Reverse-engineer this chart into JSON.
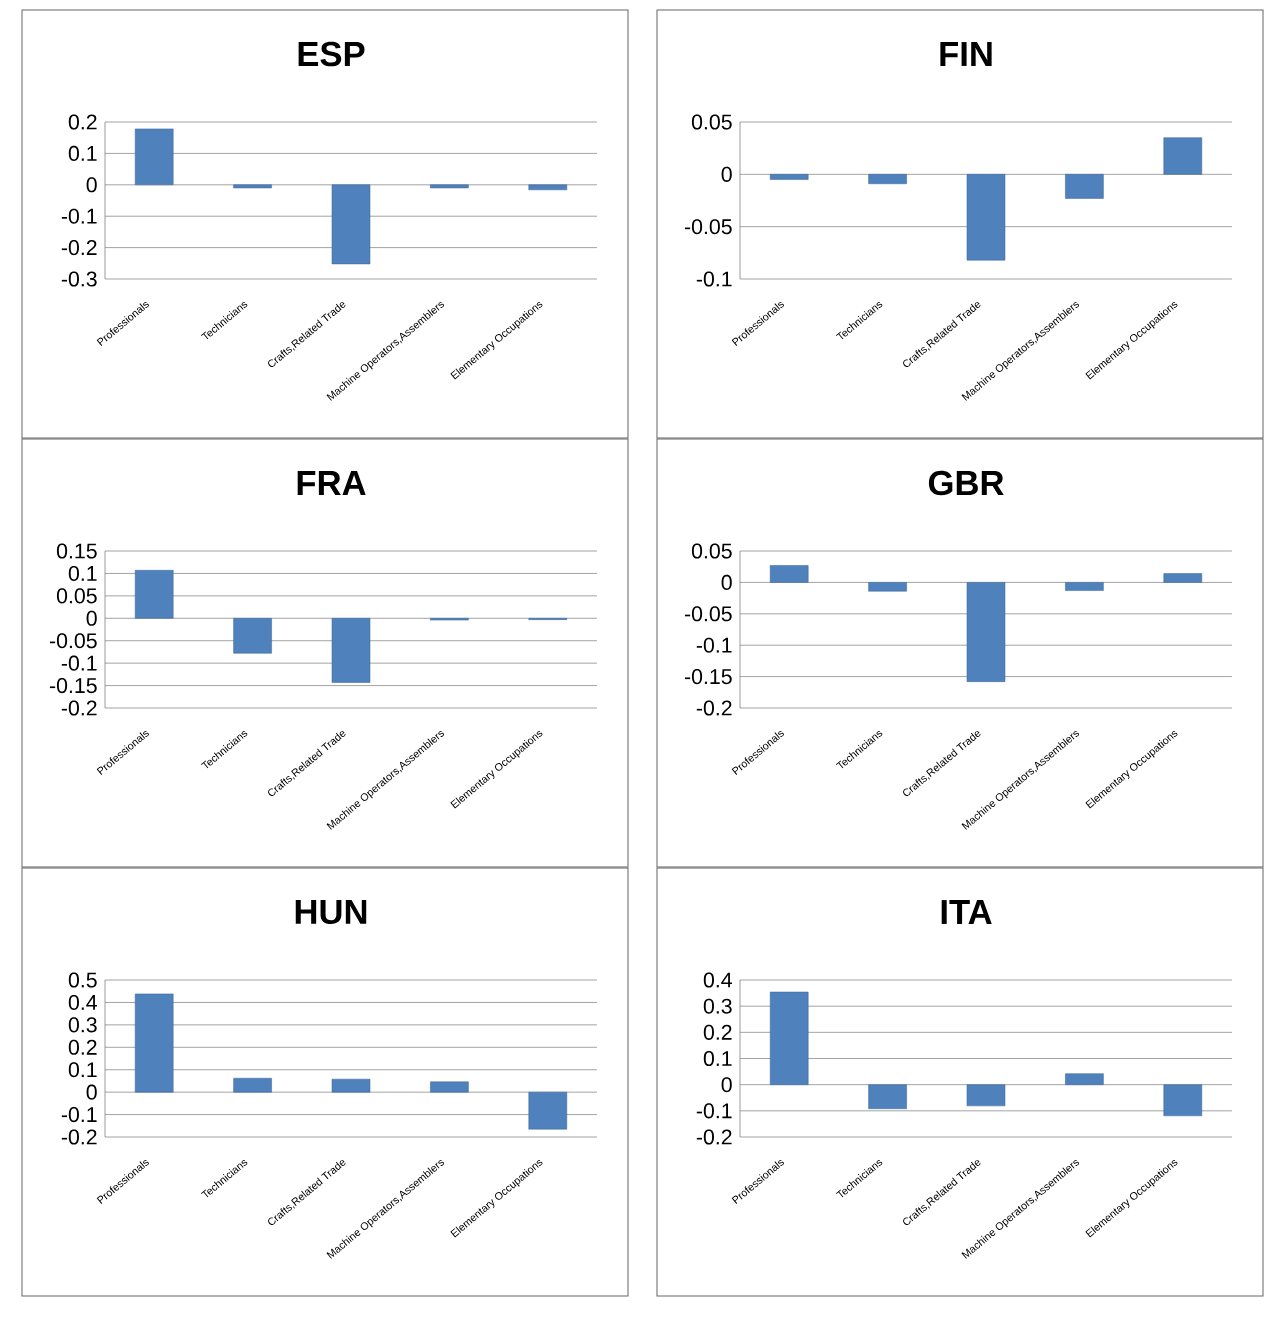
{
  "chart_data": [
    {
      "type": "bar",
      "title": "ESP",
      "categories": [
        "Professionals",
        "Technicians",
        "Crafts,Related Trade",
        "Machine Operators,Assemblers",
        "Elementary Occupations"
      ],
      "values": [
        0.178,
        -0.01,
        -0.252,
        -0.01,
        -0.016
      ],
      "color": "#4f81bd",
      "ylim": [
        -0.3,
        0.2
      ],
      "yticks": [
        -0.3,
        -0.2,
        -0.1,
        0,
        0.1,
        0.2
      ],
      "grid": "y"
    },
    {
      "type": "bar",
      "title": "FIN",
      "categories": [
        "Professionals",
        "Technicians",
        "Crafts,Related Trade",
        "Machine Operators,Assemblers",
        "Elementary Occupations"
      ],
      "values": [
        -0.005,
        -0.009,
        -0.082,
        -0.023,
        0.035
      ],
      "color": "#4f81bd",
      "ylim": [
        -0.1,
        0.05
      ],
      "yticks": [
        -0.1,
        -0.05,
        0,
        0.05
      ],
      "grid": "y"
    },
    {
      "type": "bar",
      "title": "FRA",
      "categories": [
        "Professionals",
        "Technicians",
        "Crafts,Related Trade",
        "Machine Operators,Assemblers",
        "Elementary Occupations"
      ],
      "values": [
        0.107,
        -0.078,
        -0.143,
        -0.004,
        -0.003
      ],
      "color": "#4f81bd",
      "ylim": [
        -0.2,
        0.15
      ],
      "yticks": [
        -0.2,
        -0.15,
        -0.1,
        -0.05,
        0,
        0.05,
        0.1,
        0.15
      ],
      "grid": "y"
    },
    {
      "type": "bar",
      "title": "GBR",
      "categories": [
        "Professionals",
        "Technicians",
        "Crafts,Related Trade",
        "Machine Operators,Assemblers",
        "Elementary Occupations"
      ],
      "values": [
        0.027,
        -0.014,
        -0.158,
        -0.013,
        0.014
      ],
      "color": "#4f81bd",
      "ylim": [
        -0.2,
        0.05
      ],
      "yticks": [
        -0.2,
        -0.15,
        -0.1,
        -0.05,
        0,
        0.05
      ],
      "grid": "y"
    },
    {
      "type": "bar",
      "title": "HUN",
      "categories": [
        "Professionals",
        "Technicians",
        "Crafts,Related Trade",
        "Machine Operators,Assemblers",
        "Elementary Occupations"
      ],
      "values": [
        0.438,
        0.062,
        0.058,
        0.046,
        -0.165
      ],
      "color": "#4f81bd",
      "ylim": [
        -0.2,
        0.5
      ],
      "yticks": [
        -0.2,
        -0.1,
        0,
        0.1,
        0.2,
        0.3,
        0.4,
        0.5
      ],
      "grid": "y"
    },
    {
      "type": "bar",
      "title": "ITA",
      "categories": [
        "Professionals",
        "Technicians",
        "Crafts,Related Trade",
        "Machine Operators,Assemblers",
        "Elementary Occupations"
      ],
      "values": [
        0.354,
        -0.092,
        -0.081,
        0.042,
        -0.119
      ],
      "color": "#4f81bd",
      "ylim": [
        -0.2,
        0.4
      ],
      "yticks": [
        -0.2,
        -0.1,
        0,
        0.1,
        0.2,
        0.3,
        0.4
      ],
      "grid": "y"
    }
  ]
}
